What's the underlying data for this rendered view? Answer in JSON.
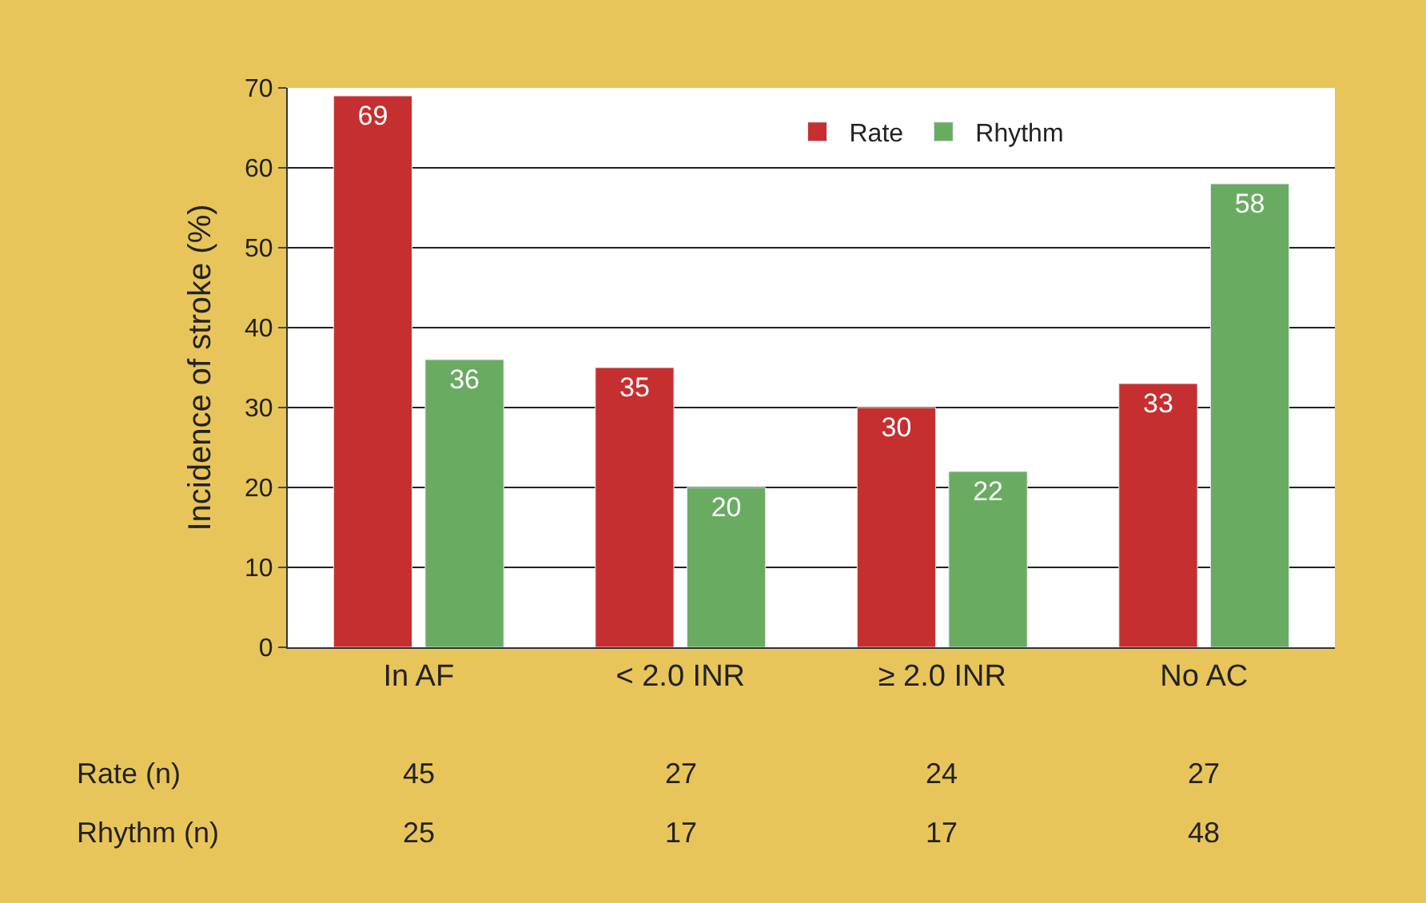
{
  "chart_data": {
    "type": "bar",
    "ylabel": "Incidence of stroke (%)",
    "categories": [
      "In AF",
      "< 2.0 INR",
      "≥ 2.0 INR",
      "No AC"
    ],
    "series": [
      {
        "name": "Rate",
        "color": "#c62f2f",
        "values": [
          69,
          35,
          30,
          33
        ]
      },
      {
        "name": "Rhythm",
        "color": "#6aab62",
        "values": [
          36,
          20,
          22,
          58
        ]
      }
    ],
    "ylim": [
      0,
      70
    ],
    "yticks": [
      0,
      10,
      20,
      30,
      40,
      50,
      60,
      70
    ],
    "grid": "y",
    "legend": "top right",
    "data_labels": true,
    "annotations": [
      "Rate (n)",
      "45",
      "27",
      "24",
      "27",
      "Rhythm (n)",
      "25",
      "17",
      "17",
      "48"
    ]
  }
}
